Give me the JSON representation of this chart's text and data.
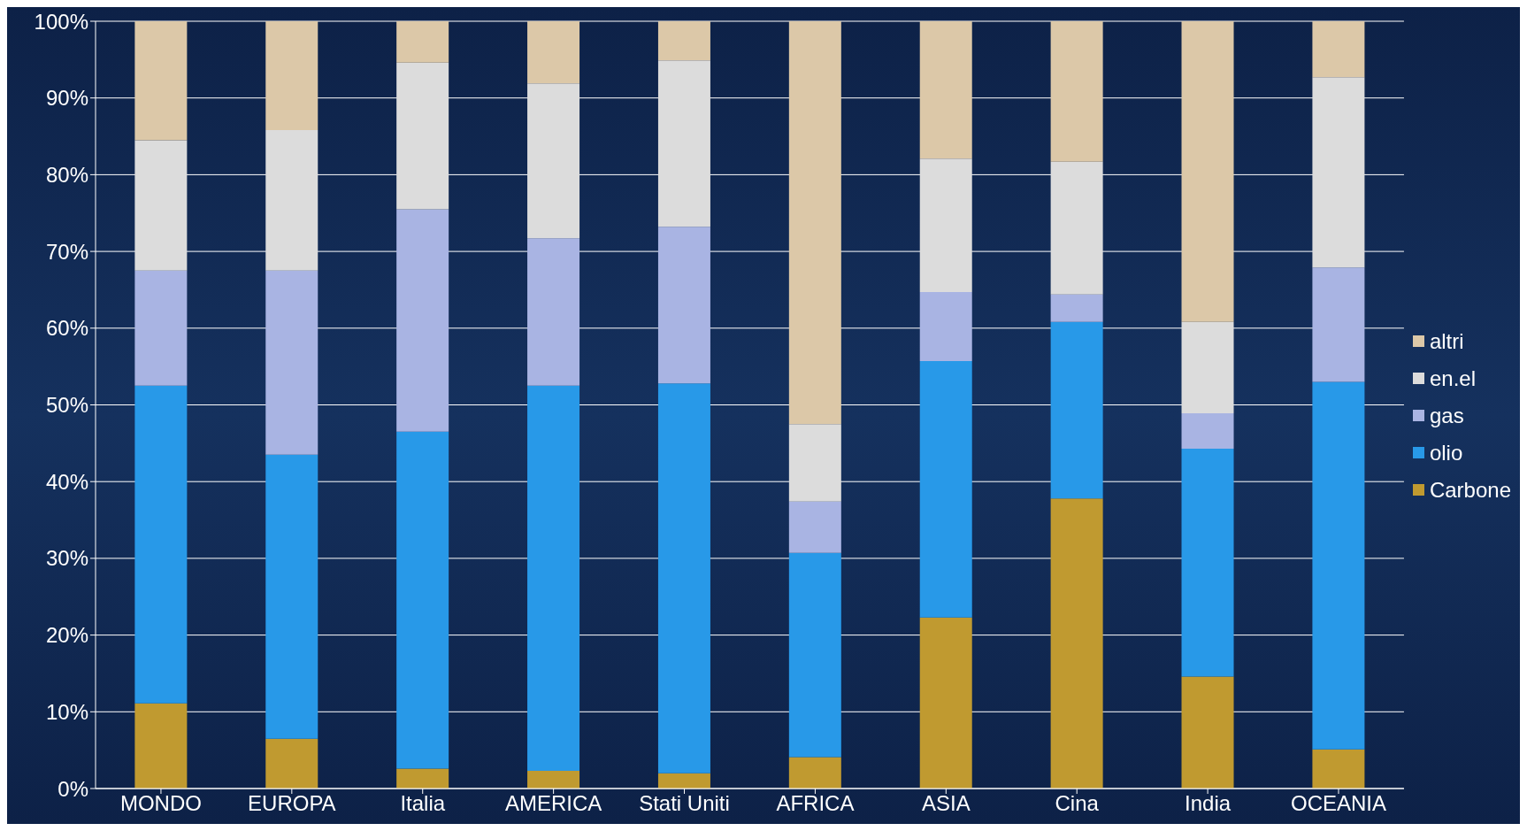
{
  "chart_data": {
    "type": "bar",
    "stacked": true,
    "categories": [
      "MONDO",
      "EUROPA",
      "Italia",
      "AMERICA",
      "Stati Uniti",
      "AFRICA",
      "ASIA",
      "Cina",
      "India",
      "OCEANIA"
    ],
    "series": [
      {
        "name": "Carbone",
        "color": "#c09a30",
        "values": [
          11.1,
          6.5,
          2.6,
          2.3,
          2.0,
          4.1,
          22.3,
          37.8,
          14.6,
          5.1
        ]
      },
      {
        "name": "olio",
        "color": "#2899e8",
        "values": [
          41.4,
          37.0,
          43.9,
          50.2,
          50.8,
          26.6,
          33.4,
          23.0,
          29.7,
          47.9
        ]
      },
      {
        "name": "gas",
        "color": "#a9b4e3",
        "values": [
          15.0,
          24.0,
          29.0,
          19.2,
          20.4,
          6.7,
          9.0,
          3.6,
          4.6,
          14.9
        ]
      },
      {
        "name": "en.el",
        "color": "#dcdcdc",
        "values": [
          17.0,
          18.3,
          19.1,
          20.2,
          21.7,
          10.1,
          17.4,
          17.3,
          11.9,
          24.8
        ]
      },
      {
        "name": "altri",
        "color": "#dcc8a8",
        "values": [
          15.5,
          14.2,
          5.4,
          8.1,
          5.1,
          52.5,
          17.9,
          18.3,
          39.2,
          7.3
        ]
      }
    ],
    "ylim": [
      0,
      100
    ],
    "yticks": [
      {
        "value": 0,
        "label": "0%"
      },
      {
        "value": 10,
        "label": "10%"
      },
      {
        "value": 20,
        "label": "20%"
      },
      {
        "value": 30,
        "label": "30%"
      },
      {
        "value": 40,
        "label": "40%"
      },
      {
        "value": 50,
        "label": "50%"
      },
      {
        "value": 60,
        "label": "60%"
      },
      {
        "value": 70,
        "label": "70%"
      },
      {
        "value": 80,
        "label": "80%"
      },
      {
        "value": 90,
        "label": "90%"
      },
      {
        "value": 100,
        "label": "100%"
      }
    ],
    "grid": "y",
    "legend": "right"
  }
}
